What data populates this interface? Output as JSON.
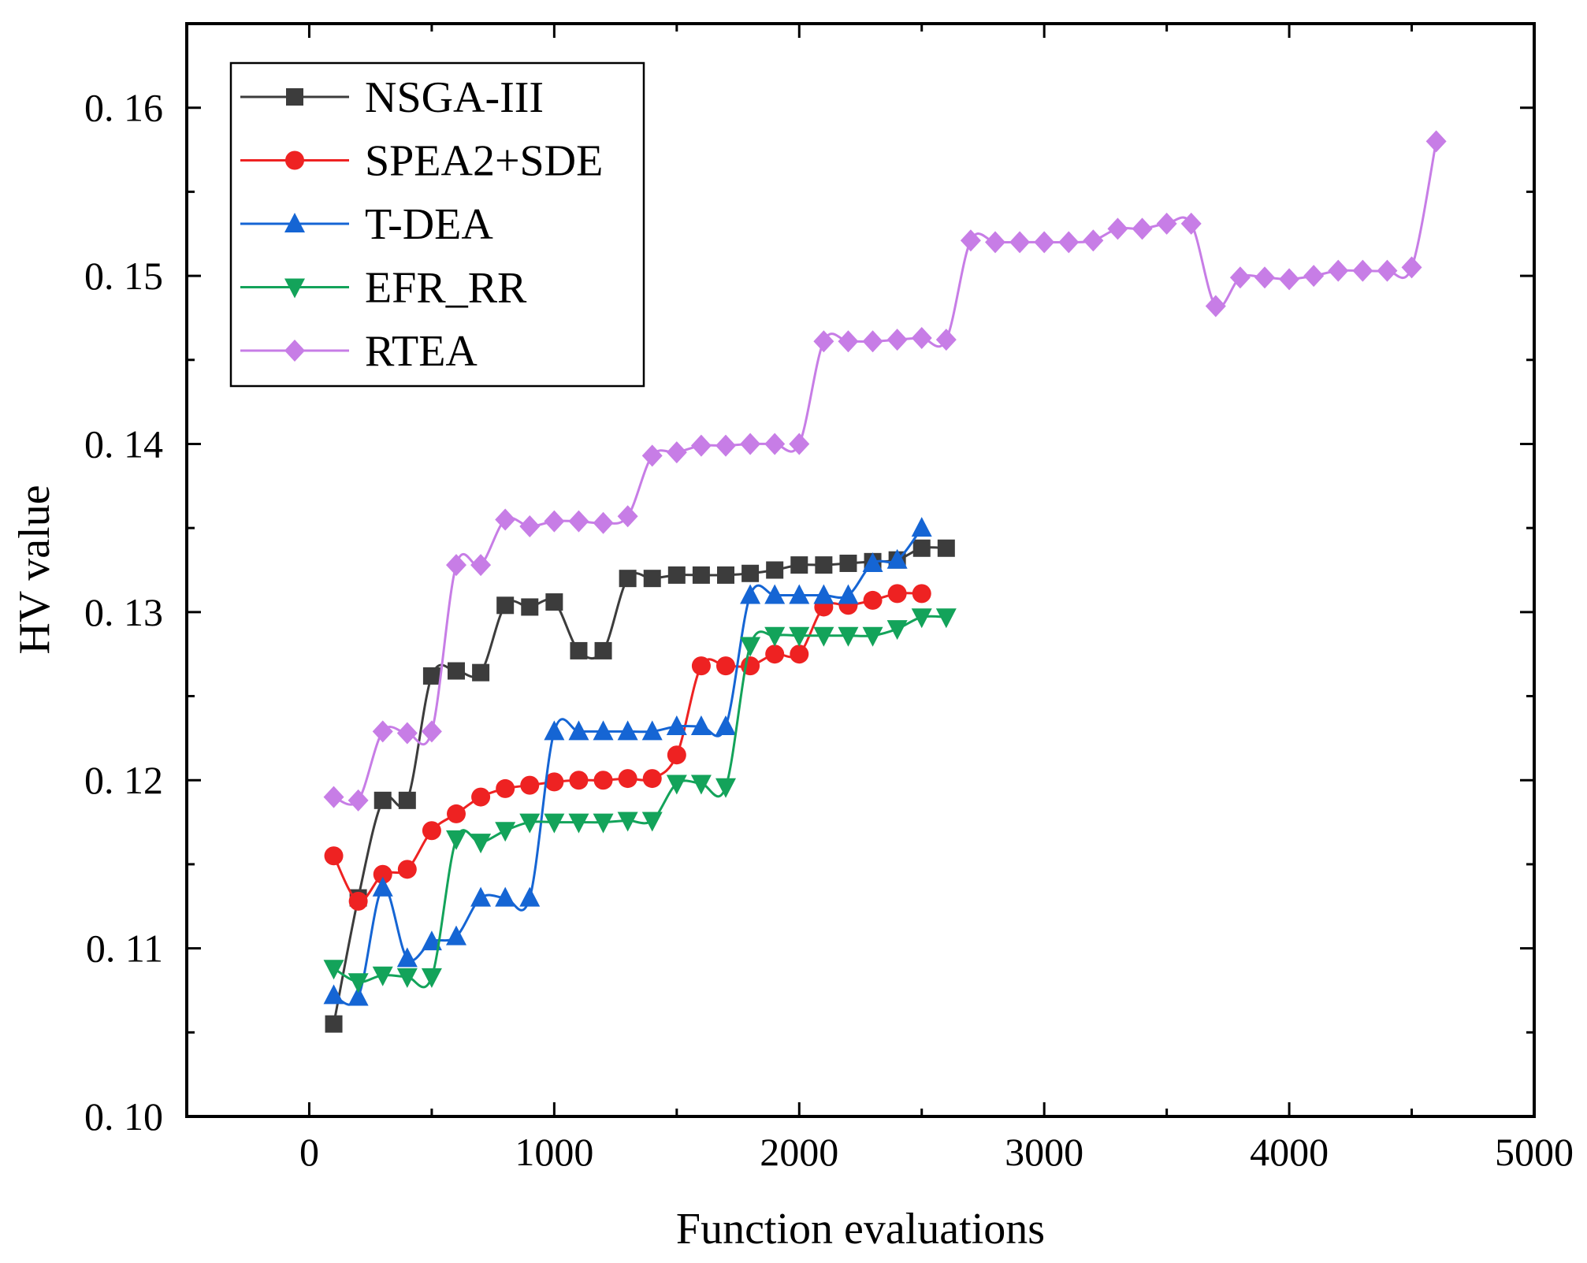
{
  "chart_data": {
    "type": "line",
    "title": "",
    "xlabel": "Function evaluations",
    "ylabel": "HV value",
    "xlim": [
      -500,
      5000
    ],
    "ylim": [
      0.1,
      0.165
    ],
    "grid": false,
    "legend_position": "top-left",
    "x_ticks": [
      0,
      1000,
      2000,
      3000,
      4000,
      5000
    ],
    "x_tick_labels": [
      "0",
      "1000",
      "2000",
      "3000",
      "4000",
      "5000"
    ],
    "y_ticks": [
      0.1,
      0.11,
      0.12,
      0.13,
      0.14,
      0.15,
      0.16
    ],
    "y_tick_labels": [
      "0. 10",
      "0. 11",
      "0. 12",
      "0. 13",
      "0. 14",
      "0. 15",
      "0. 16"
    ],
    "series": [
      {
        "name": "NSGA-III",
        "color": "#3c3c3c",
        "marker": "square",
        "x": [
          100,
          200,
          300,
          400,
          500,
          600,
          700,
          800,
          900,
          1000,
          1100,
          1200,
          1300,
          1400,
          1500,
          1600,
          1700,
          1800,
          1900,
          2000,
          2100,
          2200,
          2300,
          2400,
          2500,
          2600
        ],
        "y": [
          0.1055,
          0.113,
          0.1188,
          0.1188,
          0.1262,
          0.1265,
          0.1264,
          0.1304,
          0.1303,
          0.1306,
          0.1277,
          0.1277,
          0.132,
          0.132,
          0.1322,
          0.1322,
          0.1322,
          0.1323,
          0.1325,
          0.1328,
          0.1328,
          0.1329,
          0.133,
          0.1331,
          0.1338,
          0.1338
        ]
      },
      {
        "name": "SPEA2+SDE",
        "color": "#ee2222",
        "marker": "circle",
        "x": [
          100,
          200,
          300,
          400,
          500,
          600,
          700,
          800,
          900,
          1000,
          1100,
          1200,
          1300,
          1400,
          1500,
          1600,
          1700,
          1800,
          1900,
          2000,
          2100,
          2200,
          2300,
          2400,
          2500
        ],
        "y": [
          0.1155,
          0.1128,
          0.1144,
          0.1147,
          0.117,
          0.118,
          0.119,
          0.1195,
          0.1197,
          0.1199,
          0.12,
          0.12,
          0.1201,
          0.1201,
          0.1215,
          0.1268,
          0.1268,
          0.1268,
          0.1275,
          0.1275,
          0.1303,
          0.1304,
          0.1307,
          0.1311,
          0.1311
        ]
      },
      {
        "name": "T-DEA",
        "color": "#1565d4",
        "marker": "triangle-up",
        "x": [
          100,
          200,
          300,
          400,
          500,
          600,
          700,
          800,
          900,
          1000,
          1100,
          1200,
          1300,
          1400,
          1500,
          1600,
          1700,
          1800,
          1900,
          2000,
          2100,
          2200,
          2300,
          2400,
          2500
        ],
        "y": [
          0.1072,
          0.1071,
          0.1136,
          0.1094,
          0.1104,
          0.1107,
          0.113,
          0.113,
          0.113,
          0.1229,
          0.1229,
          0.1229,
          0.1229,
          0.1229,
          0.1232,
          0.1232,
          0.1232,
          0.131,
          0.131,
          0.131,
          0.131,
          0.131,
          0.1329,
          0.1331,
          0.135
        ]
      },
      {
        "name": "EFR_RR",
        "color": "#13a35a",
        "marker": "triangle-down",
        "x": [
          100,
          200,
          300,
          400,
          500,
          600,
          700,
          800,
          900,
          1000,
          1100,
          1200,
          1300,
          1400,
          1500,
          1600,
          1700,
          1800,
          1900,
          2000,
          2100,
          2200,
          2300,
          2400,
          2500,
          2600
        ],
        "y": [
          0.1088,
          0.108,
          0.1084,
          0.1083,
          0.1083,
          0.1165,
          0.1163,
          0.117,
          0.1175,
          0.1175,
          0.1175,
          0.1175,
          0.1176,
          0.1176,
          0.1198,
          0.1198,
          0.1196,
          0.128,
          0.1286,
          0.1286,
          0.1286,
          0.1286,
          0.1286,
          0.129,
          0.1297,
          0.1297
        ]
      },
      {
        "name": "RTEA",
        "color": "#c77de6",
        "marker": "diamond",
        "x": [
          100,
          200,
          300,
          400,
          500,
          600,
          700,
          800,
          900,
          1000,
          1100,
          1200,
          1300,
          1400,
          1500,
          1600,
          1700,
          1800,
          1900,
          2000,
          2100,
          2200,
          2300,
          2400,
          2500,
          2600,
          2700,
          2800,
          2900,
          3000,
          3100,
          3200,
          3300,
          3400,
          3500,
          3600,
          3700,
          3800,
          3900,
          4000,
          4100,
          4200,
          4300,
          4400,
          4500,
          4600
        ],
        "y": [
          0.119,
          0.1188,
          0.1229,
          0.1228,
          0.1229,
          0.1328,
          0.1328,
          0.1355,
          0.1351,
          0.1354,
          0.1354,
          0.1353,
          0.1357,
          0.1393,
          0.1395,
          0.1399,
          0.1399,
          0.14,
          0.14,
          0.14,
          0.1461,
          0.1461,
          0.1461,
          0.1462,
          0.1463,
          0.1462,
          0.1521,
          0.152,
          0.152,
          0.152,
          0.152,
          0.1521,
          0.1528,
          0.1528,
          0.1531,
          0.1531,
          0.1482,
          0.1499,
          0.1499,
          0.1498,
          0.15,
          0.1503,
          0.1503,
          0.1503,
          0.1505,
          0.158
        ]
      }
    ]
  }
}
